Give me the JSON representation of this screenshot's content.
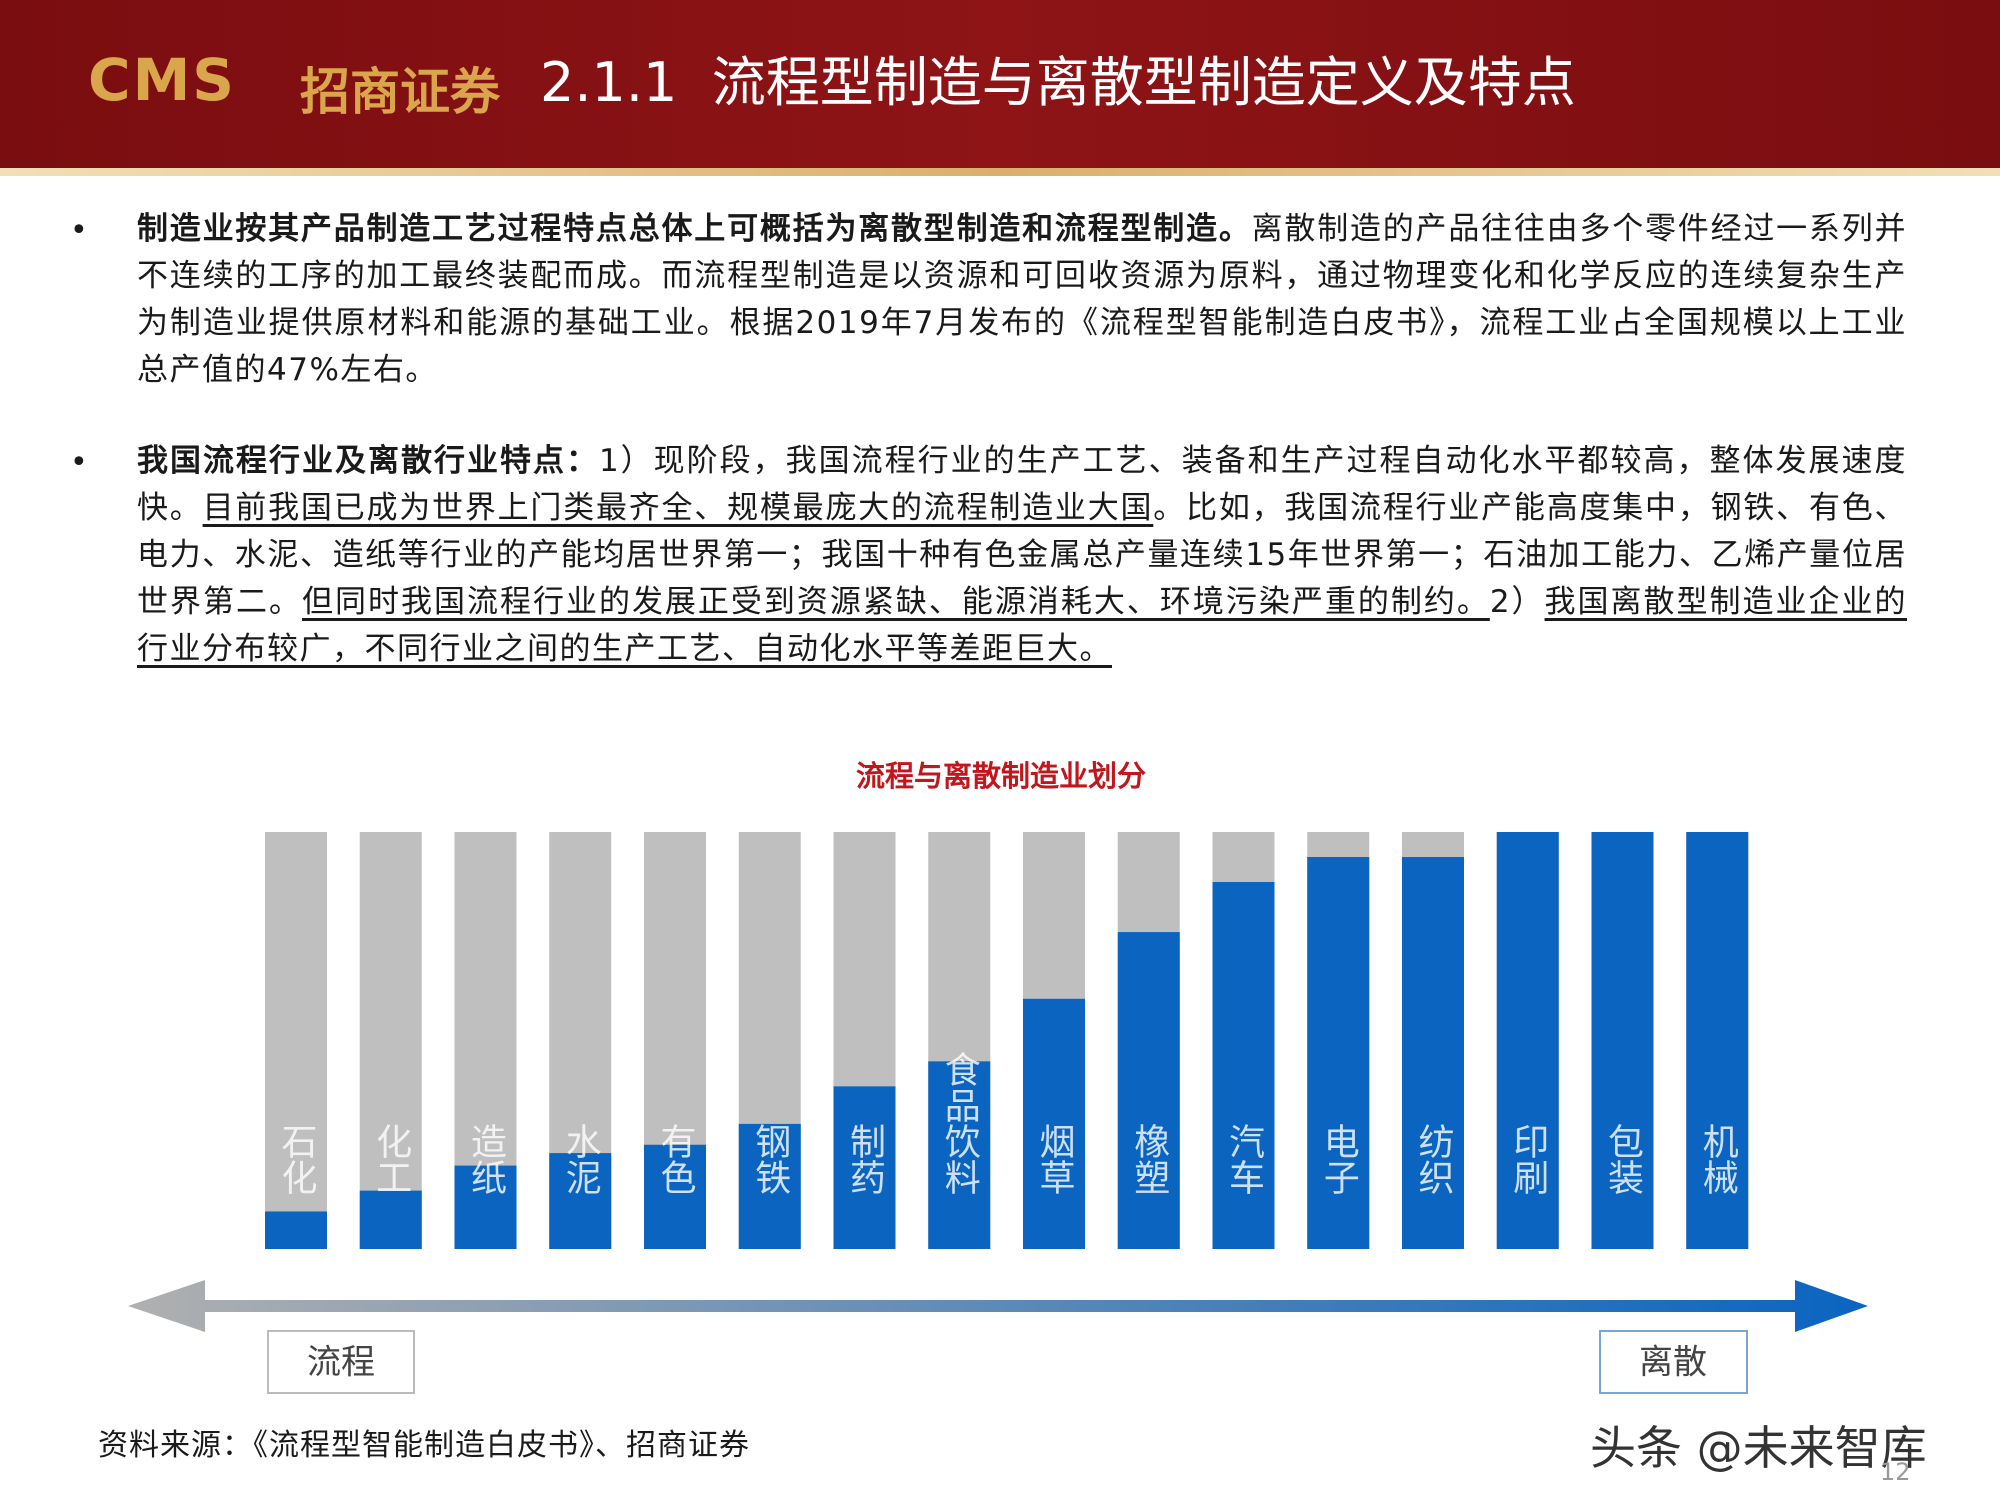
{
  "logo": {
    "brand": "CMS",
    "name": "招商证券"
  },
  "header": {
    "title": "2.1.1  流程型制造与离散型制造定义及特点"
  },
  "bullets": [
    {
      "runs": [
        {
          "text": "制造业按其产品制造工艺过程特点总体上可概括为离散型制造和流程型制造。",
          "style": "bold"
        },
        {
          "text": "离散制造的产品往往由多个零件经过一系列并不连续的工序的加工最终装配而成。而流程型制造是以资源和可回收资源为原料，通过物理变化和化学反应的连续复杂生产为制造业提供原材料和能源的基础工业。根据2019年7月发布的《流程型智能制造白皮书》，流程工业占全国规模以上工业总产值的47%左右。",
          "style": "normal"
        }
      ]
    },
    {
      "runs": [
        {
          "text": "我国流程行业及离散行业特点：",
          "style": "bold"
        },
        {
          "text": "1）现阶段，我国流程行业的生产工艺、装备和生产过程自动化水平都较高，整体发展速度快。",
          "style": "normal"
        },
        {
          "text": "目前我国已成为世界上门类最齐全、规模最庞大的流程制造业大国",
          "style": "underline"
        },
        {
          "text": "。比如，我国流程行业产能高度集中，钢铁、有色、电力、水泥、造纸等行业的产能均居世界第一；我国十种有色金属总产量连续15年世界第一；石油加工能力、乙烯产量位居世界第二。",
          "style": "normal"
        },
        {
          "text": "但同时我国流程行业的发展正受到资源紧缺、能源消耗大、环境污染严重的制约。",
          "style": "underline"
        },
        {
          "text": "2）",
          "style": "normal"
        },
        {
          "text": "我国离散型制造业企业的行业分布较广，不同行业之间的生产工艺、自动化水平等差距巨大。",
          "style": "underline"
        }
      ]
    }
  ],
  "chart_data": {
    "type": "bar",
    "title": "流程与离散制造业划分",
    "categories": [
      "石化",
      "化工",
      "造纸",
      "水泥",
      "有色",
      "钢铁",
      "制药",
      "食品饮料",
      "烟草",
      "橡塑",
      "汽车",
      "电子",
      "纺织",
      "印刷",
      "包装",
      "机械"
    ],
    "values": [
      9,
      14,
      20,
      23,
      25,
      30,
      39,
      45,
      60,
      76,
      88,
      94,
      94,
      100,
      100,
      100
    ],
    "color": "#0a64c0",
    "track_color": "#bfbfbf",
    "ylim": [
      0,
      100
    ],
    "start_label": "流程",
    "end_label": "离散"
  },
  "source": "资料来源：《流程型智能制造白皮书》、招商证券",
  "watermark": "头条 @未来智库",
  "page_number": "12"
}
